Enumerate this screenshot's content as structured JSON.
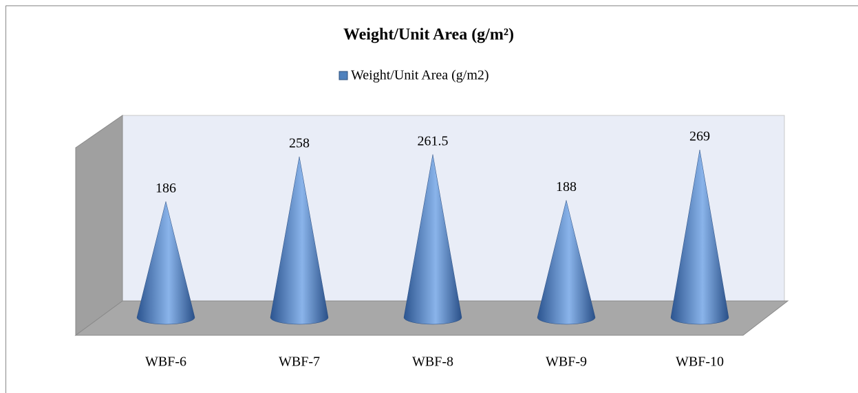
{
  "chart_data": {
    "type": "cone",
    "title": "Weight/Unit Area (g/m²)",
    "categories": [
      "WBF-6",
      "WBF-7",
      "WBF-8",
      "WBF-9",
      "WBF-10"
    ],
    "series": [
      {
        "name": "Weight/Unit Area (g/m2)",
        "color": "#4f81bd",
        "values": [
          186,
          258,
          261.5,
          188,
          269
        ]
      }
    ]
  }
}
